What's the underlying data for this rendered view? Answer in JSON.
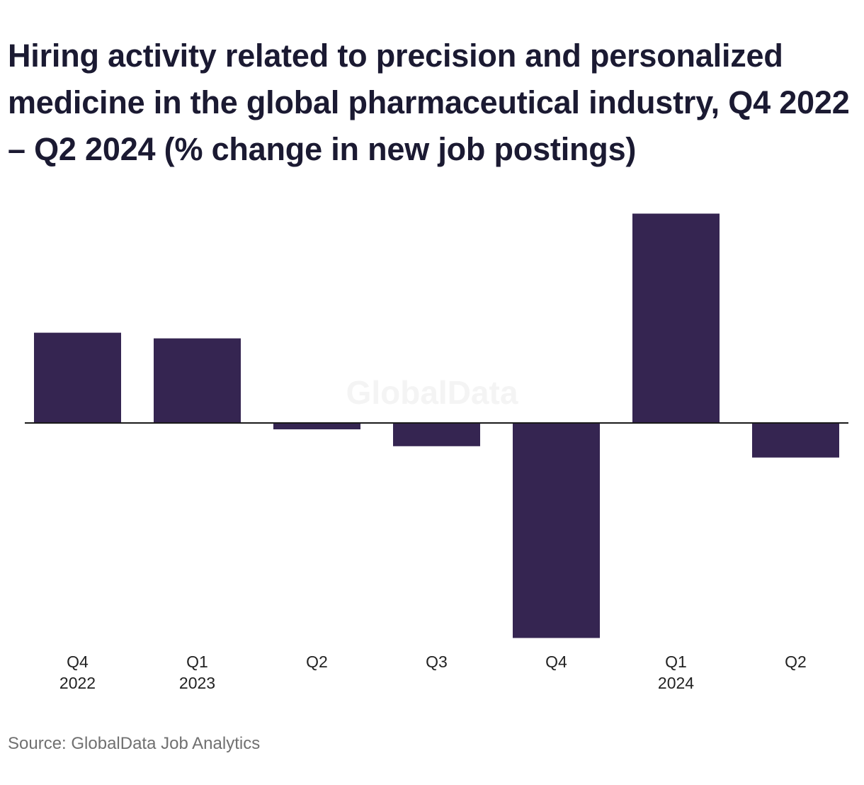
{
  "chart_data": {
    "type": "bar",
    "title": "Hiring activity related to precision and personalized medicine in the global pharmaceutical industry, Q4 2022 – Q2 2024 (% change in new job postings)",
    "categories": [
      {
        "label": "Q4",
        "sublabel": "2022"
      },
      {
        "label": "Q1",
        "sublabel": "2023"
      },
      {
        "label": "Q2",
        "sublabel": ""
      },
      {
        "label": "Q3",
        "sublabel": ""
      },
      {
        "label": "Q4",
        "sublabel": ""
      },
      {
        "label": "Q1",
        "sublabel": "2024"
      },
      {
        "label": "Q2",
        "sublabel": ""
      }
    ],
    "values": [
      12.8,
      12.0,
      -0.9,
      -3.3,
      -30.5,
      29.7,
      -4.9
    ],
    "xlabel": "",
    "ylabel": "",
    "ylim": [
      -31,
      31
    ],
    "grid": false,
    "zero_line": true,
    "bar_color": "#352551",
    "axis_color": "#1a1a1a"
  },
  "watermark": "GlobalData",
  "source": "Source: GlobalData Job Analytics"
}
